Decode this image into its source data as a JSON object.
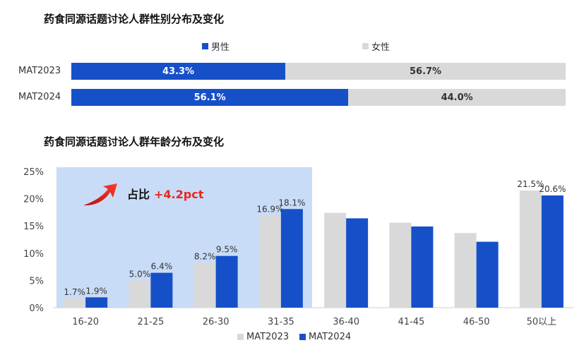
{
  "gender_chart": {
    "title": "药食同源话题讨论人群性别分布及变化",
    "legend": [
      {
        "label": "男性",
        "color": "#1650c9"
      },
      {
        "label": "女性",
        "color": "#d9d9d9"
      }
    ]
  },
  "age_chart": {
    "title": "药食同源话题讨论人群年龄分布及变化",
    "annotation": {
      "prefix": "占比",
      "delta": "+4.2pct"
    },
    "highlight_color": "#c9dcf7",
    "legend": [
      {
        "label": "MAT2023",
        "color": "#d9d9d9"
      },
      {
        "label": "MAT2024",
        "color": "#1650c9"
      }
    ]
  },
  "chart_data": [
    {
      "type": "bar",
      "orientation": "horizontal-stacked-100",
      "title": "药食同源话题讨论人群性别分布及变化",
      "categories": [
        "MAT2023",
        "MAT2024"
      ],
      "series": [
        {
          "name": "男性",
          "values": [
            43.3,
            56.1
          ],
          "labels": [
            "43.3%",
            "56.1%"
          ],
          "color": "#1650c9"
        },
        {
          "name": "女性",
          "values": [
            56.7,
            44.0
          ],
          "labels": [
            "56.7%",
            "44.0%"
          ],
          "color": "#d9d9d9"
        }
      ],
      "legend_position": "top"
    },
    {
      "type": "bar",
      "title": "药食同源话题讨论人群年龄分布及变化",
      "categories": [
        "16-20",
        "21-25",
        "26-30",
        "31-35",
        "36-40",
        "41-45",
        "46-50",
        "50以上"
      ],
      "series": [
        {
          "name": "MAT2023",
          "values": [
            1.7,
            5.0,
            8.2,
            16.9,
            17.4,
            15.6,
            13.7,
            21.5
          ],
          "labels": [
            "1.7%",
            "5.0%",
            "8.2%",
            "16.9%",
            "",
            "",
            "",
            "21.5%"
          ],
          "color": "#d9d9d9"
        },
        {
          "name": "MAT2024",
          "values": [
            1.9,
            6.4,
            9.5,
            18.1,
            16.4,
            14.9,
            12.1,
            20.6
          ],
          "labels": [
            "1.9%",
            "6.4%",
            "9.5%",
            "18.1%",
            "",
            "",
            "",
            "20.6%"
          ],
          "color": "#1650c9"
        }
      ],
      "yticks": [
        "0%",
        "5%",
        "10%",
        "15%",
        "20%",
        "25%"
      ],
      "ylim": [
        0,
        25
      ],
      "grid": false,
      "legend_position": "bottom",
      "highlight_categories": [
        "16-20",
        "21-25",
        "26-30",
        "31-35"
      ]
    }
  ]
}
